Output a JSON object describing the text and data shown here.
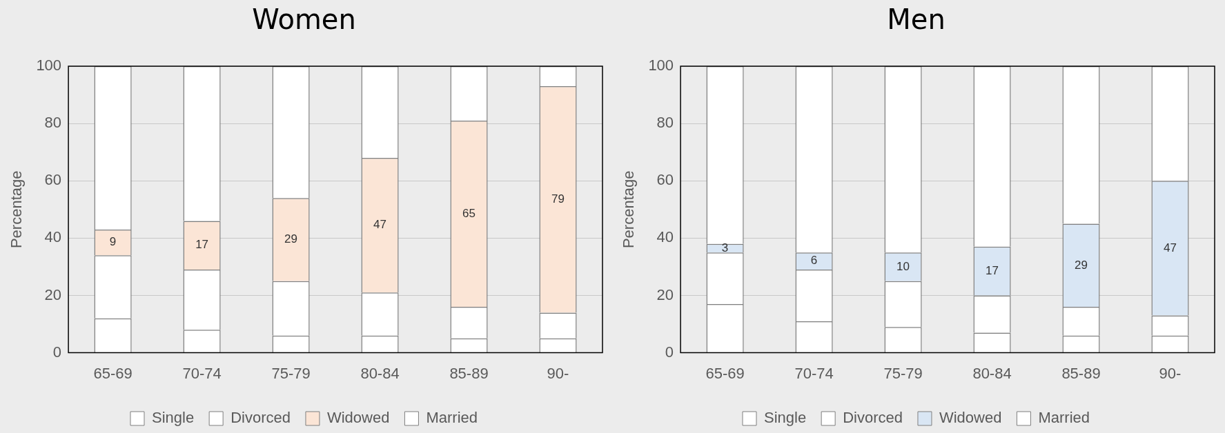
{
  "chart_data": [
    {
      "type": "bar",
      "title": "Women",
      "ylabel": "Percentage",
      "categories": [
        "65-69",
        "70-74",
        "75-79",
        "80-84",
        "85-89",
        "90-"
      ],
      "stacked": true,
      "ylim": [
        0,
        100
      ],
      "yticks": [
        0,
        20,
        40,
        60,
        80,
        100
      ],
      "grid": "y",
      "legend": "bottom",
      "series": [
        {
          "name": "Single",
          "color": "#ffffff",
          "values": [
            12,
            8,
            6,
            6,
            5,
            5
          ]
        },
        {
          "name": "Divorced",
          "color": "#ffffff",
          "values": [
            22,
            21,
            19,
            15,
            11,
            9
          ]
        },
        {
          "name": "Widowed",
          "color": "#fbe5d6",
          "values": [
            9,
            17,
            29,
            47,
            65,
            79
          ],
          "value_labels": [
            "9",
            "17",
            "29",
            "47",
            "65",
            "79"
          ]
        },
        {
          "name": "Married",
          "color": "#ffffff",
          "values": [
            57,
            54,
            46,
            32,
            19,
            7
          ]
        }
      ]
    },
    {
      "type": "bar",
      "title": "Men",
      "ylabel": "Percentage",
      "categories": [
        "65-69",
        "70-74",
        "75-79",
        "80-84",
        "85-89",
        "90-"
      ],
      "stacked": true,
      "ylim": [
        0,
        100
      ],
      "yticks": [
        0,
        20,
        40,
        60,
        80,
        100
      ],
      "grid": "y",
      "legend": "bottom",
      "series": [
        {
          "name": "Single",
          "color": "#ffffff",
          "values": [
            17,
            11,
            9,
            7,
            6,
            6
          ]
        },
        {
          "name": "Divorced",
          "color": "#ffffff",
          "values": [
            18,
            18,
            16,
            13,
            10,
            7
          ]
        },
        {
          "name": "Widowed",
          "color": "#d9e6f4",
          "values": [
            3,
            6,
            10,
            17,
            29,
            47
          ],
          "value_labels": [
            "3",
            "6",
            "10",
            "17",
            "29",
            "47"
          ]
        },
        {
          "name": "Married",
          "color": "#ffffff",
          "values": [
            62,
            65,
            65,
            63,
            55,
            40
          ]
        }
      ]
    }
  ]
}
